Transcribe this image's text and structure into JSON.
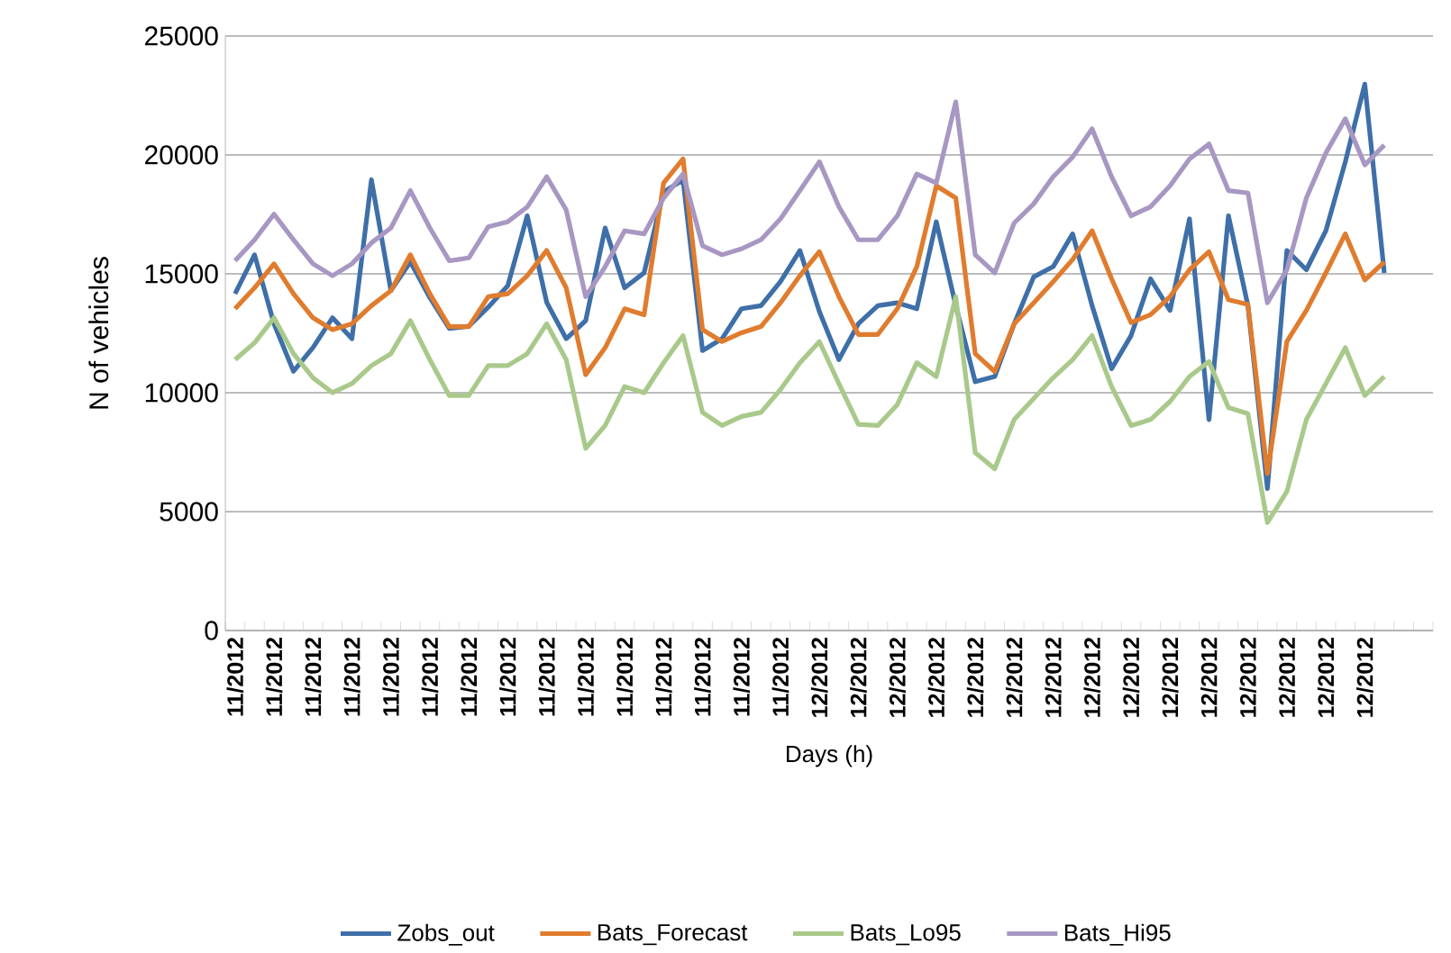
{
  "chart_data": {
    "type": "line",
    "xlabel": "Days (h)",
    "ylabel": "N of vehicles",
    "categories": [
      "11/2012",
      null,
      "11/2012",
      null,
      "11/2012",
      null,
      "11/2012",
      null,
      "11/2012",
      null,
      "11/2012",
      null,
      "11/2012",
      null,
      "11/2012",
      null,
      "11/2012",
      null,
      "11/2012",
      null,
      "11/2012",
      null,
      "11/2012",
      null,
      "11/2012",
      null,
      "11/2012",
      null,
      "11/2012",
      null,
      "12/2012",
      null,
      "12/2012",
      null,
      "12/2012",
      null,
      "12/2012",
      null,
      "12/2012",
      null,
      "12/2012",
      null,
      "12/2012",
      null,
      "12/2012",
      null,
      "12/2012",
      null,
      "12/2012",
      null,
      "12/2012",
      null,
      "12/2012",
      null,
      "12/2012",
      null,
      "12/2012",
      null,
      "12/2012",
      null,
      null,
      null
    ],
    "series": [
      {
        "name": "Zobs_out",
        "color": "#3f6fa8",
        "values": [
          14160,
          15800,
          12900,
          10900,
          11900,
          13150,
          12270,
          18950,
          14300,
          15500,
          14000,
          12700,
          12800,
          13600,
          14500,
          17440,
          13800,
          12270,
          13030,
          16930,
          14410,
          15040,
          18440,
          18950,
          11770,
          12270,
          13530,
          13660,
          14670,
          15980,
          13410,
          11390,
          12900,
          13660,
          13780,
          13530,
          17190,
          13660,
          10460,
          10680,
          12900,
          14870,
          15300,
          16680,
          13660,
          11010,
          12400,
          14790,
          13460,
          17310,
          8870,
          17440,
          13660,
          5970,
          15980,
          15170,
          16810,
          19710,
          22980,
          15040,
          null,
          null
        ]
      },
      {
        "name": "Bats_Forecast",
        "color": "#e07c2e",
        "values": [
          13530,
          14410,
          15420,
          14160,
          13150,
          12650,
          12900,
          13660,
          14290,
          15800,
          14160,
          12780,
          12780,
          14040,
          14160,
          14920,
          15980,
          14410,
          10760,
          11890,
          13530,
          13280,
          18820,
          19830,
          12650,
          12150,
          12520,
          12780,
          13780,
          14920,
          15930,
          14040,
          12450,
          12450,
          13530,
          15300,
          18700,
          18190,
          11640,
          10890,
          12900,
          13780,
          14670,
          15600,
          16810,
          14790,
          12950,
          13280,
          14040,
          15170,
          15930,
          13910,
          13710,
          6600,
          12150,
          13460,
          15040,
          16680,
          14740,
          15500,
          null,
          null
        ]
      },
      {
        "name": "Bats_Lo95",
        "color": "#a9c98b",
        "values": [
          11390,
          12100,
          13150,
          11640,
          10630,
          10000,
          10380,
          11140,
          11640,
          13030,
          11390,
          9880,
          9880,
          11140,
          11140,
          11640,
          12900,
          11390,
          7660,
          8620,
          10260,
          10000,
          11260,
          12400,
          9170,
          8620,
          9000,
          9170,
          10130,
          11260,
          12150,
          10380,
          8670,
          8620,
          9500,
          11260,
          10680,
          14040,
          7480,
          6800,
          8870,
          9750,
          10630,
          11390,
          12400,
          10260,
          8620,
          8870,
          9630,
          10680,
          11310,
          9370,
          9120,
          4540,
          5850,
          8870,
          10380,
          11890,
          9880,
          10680,
          null,
          null
        ]
      },
      {
        "name": "Bats_Hi95",
        "color": "#a897c2",
        "values": [
          15550,
          16430,
          17510,
          16430,
          15420,
          14920,
          15420,
          16300,
          16930,
          18500,
          16930,
          15550,
          15670,
          16980,
          17190,
          17810,
          19080,
          17690,
          14040,
          15300,
          16810,
          16680,
          18190,
          19200,
          16180,
          15800,
          16050,
          16430,
          17310,
          18500,
          19710,
          17820,
          16430,
          16430,
          17440,
          19200,
          18820,
          22230,
          15800,
          15040,
          17140,
          17940,
          19080,
          19910,
          21100,
          19080,
          17440,
          17820,
          18700,
          19830,
          20460,
          18500,
          18400,
          13780,
          15170,
          18190,
          20080,
          21520,
          19580,
          20410,
          null,
          null
        ]
      }
    ],
    "ylim": [
      0,
      25000
    ],
    "yticks": [
      0,
      5000,
      10000,
      15000,
      20000,
      25000
    ],
    "grid": "y",
    "legend": "bottom",
    "marker": "none",
    "line_style": "solid"
  }
}
